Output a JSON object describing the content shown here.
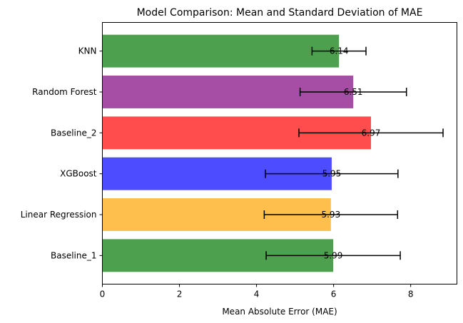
{
  "chart_data": {
    "type": "bar",
    "orientation": "horizontal",
    "title": "Model Comparison: Mean and Standard Deviation of MAE",
    "xlabel": "Mean Absolute Error (MAE)",
    "ylabel": "",
    "xlim": [
      0,
      9.2
    ],
    "xticks": [
      0,
      2,
      4,
      6,
      8
    ],
    "grid": false,
    "categories": [
      "Baseline_1",
      "Linear Regression",
      "XGBoost",
      "Baseline_2",
      "Random Forest",
      "KNN"
    ],
    "values": [
      5.99,
      5.93,
      5.95,
      6.97,
      6.51,
      6.14
    ],
    "errors": [
      1.74,
      1.73,
      1.72,
      1.87,
      1.38,
      0.7
    ],
    "value_labels": [
      "5.99",
      "5.93",
      "5.95",
      "6.97",
      "6.51",
      "6.14"
    ],
    "colors": [
      "#4da04d",
      "#ffbf4d",
      "#4d4dff",
      "#ff4d4d",
      "#a64da6",
      "#4da04d"
    ]
  }
}
